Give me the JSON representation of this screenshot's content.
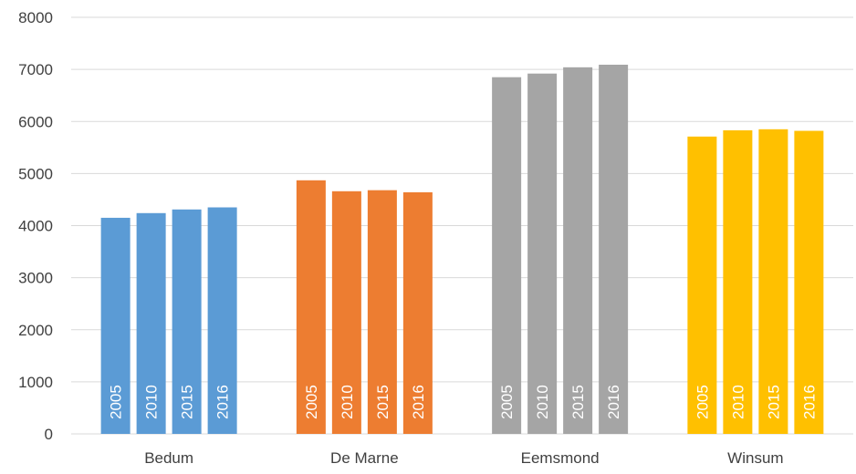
{
  "chart_data": {
    "type": "bar",
    "categories": [
      "Bedum",
      "De Marne",
      "Eemsmond",
      "Winsum"
    ],
    "bar_labels": [
      "2005",
      "2010",
      "2015",
      "2016"
    ],
    "groups": [
      {
        "category": "Bedum",
        "color": "#5b9bd5",
        "values": [
          4150,
          4240,
          4310,
          4350
        ]
      },
      {
        "category": "De Marne",
        "color": "#ed7d31",
        "values": [
          4870,
          4660,
          4680,
          4640
        ]
      },
      {
        "category": "Eemsmond",
        "color": "#a5a5a5",
        "values": [
          6850,
          6920,
          7040,
          7090
        ]
      },
      {
        "category": "Winsum",
        "color": "#ffc000",
        "values": [
          5710,
          5830,
          5850,
          5820
        ]
      }
    ],
    "yticks": [
      "0",
      "1000",
      "2000",
      "3000",
      "4000",
      "5000",
      "6000",
      "7000",
      "8000"
    ],
    "ylim": [
      0,
      8000
    ],
    "grid": true,
    "title": "",
    "xlabel": "",
    "ylabel": ""
  }
}
